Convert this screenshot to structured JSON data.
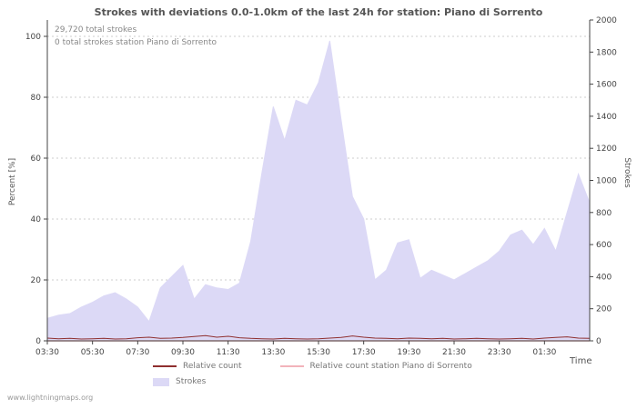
{
  "title": "Strokes with deviations 0.0-1.0km of the last 24h for station: Piano di Sorrento",
  "annotations": {
    "total_strokes": "29,720 total strokes",
    "station_total": "0 total strokes station Piano di Sorrento"
  },
  "watermark": "www.lightningmaps.org",
  "colors": {
    "area": "#dcd9f6",
    "relative": "#8f2f2f",
    "station": "#f2b3bb",
    "axis": "#444444",
    "grid": "#cccccc"
  },
  "axes": {
    "left_label": "Percent  [%]",
    "right_label": "Strokes",
    "x_label": "Time",
    "left_ticks": [
      0,
      20,
      40,
      60,
      80,
      100
    ],
    "right_ticks": [
      0,
      200,
      400,
      600,
      800,
      1000,
      1200,
      1400,
      1600,
      1800,
      2000
    ],
    "x_ticks": [
      "03:30",
      "05:30",
      "07:30",
      "09:30",
      "11:30",
      "13:30",
      "15:30",
      "17:30",
      "19:30",
      "21:30",
      "23:30",
      "01:30"
    ]
  },
  "legend": [
    {
      "label": "Relative count",
      "color": "#8f2f2f",
      "type": "line"
    },
    {
      "label": "Relative count station Piano di Sorrento",
      "color": "#f2b3bb",
      "type": "line"
    },
    {
      "label": "Strokes",
      "color": "#dcd9f6",
      "type": "area"
    }
  ],
  "chart_data": {
    "type": "area",
    "title": "Strokes with deviations 0.0-1.0km of the last 24h for station: Piano di Sorrento",
    "xlabel": "Time",
    "ylabel_left": "Percent [%]",
    "ylabel_right": "Strokes",
    "ylim_left": [
      0,
      100
    ],
    "ylim_right": [
      0,
      2000
    ],
    "grid": "dashed-horizontal",
    "legend_position": "bottom",
    "x": [
      "03:30",
      "04:00",
      "04:30",
      "05:00",
      "05:30",
      "06:00",
      "06:30",
      "07:00",
      "07:30",
      "08:00",
      "08:30",
      "09:00",
      "09:30",
      "10:00",
      "10:30",
      "11:00",
      "11:30",
      "12:00",
      "12:30",
      "13:00",
      "13:30",
      "14:00",
      "14:30",
      "15:00",
      "15:30",
      "16:00",
      "16:30",
      "17:00",
      "17:30",
      "18:00",
      "18:30",
      "19:00",
      "19:30",
      "20:00",
      "20:30",
      "21:00",
      "21:30",
      "22:00",
      "22:30",
      "23:00",
      "23:30",
      "00:00",
      "00:30",
      "01:00",
      "01:30",
      "02:00",
      "02:30",
      "03:00",
      "03:30"
    ],
    "series": [
      {
        "name": "Strokes",
        "axis": "right",
        "style": "filled-area",
        "values": [
          140,
          160,
          170,
          210,
          240,
          280,
          300,
          260,
          210,
          120,
          330,
          400,
          470,
          260,
          350,
          330,
          320,
          360,
          620,
          1050,
          1460,
          1250,
          1500,
          1470,
          1610,
          1870,
          1380,
          900,
          760,
          380,
          440,
          610,
          630,
          390,
          440,
          410,
          380,
          420,
          460,
          500,
          560,
          660,
          690,
          600,
          700,
          560,
          800,
          1040,
          860
        ]
      },
      {
        "name": "Relative count",
        "axis": "left",
        "style": "line",
        "values": [
          0.9,
          0.7,
          0.8,
          0.6,
          0.7,
          0.8,
          0.6,
          0.7,
          1.0,
          1.2,
          0.8,
          0.9,
          1.1,
          1.4,
          1.7,
          1.2,
          1.5,
          1.0,
          0.8,
          0.7,
          0.6,
          0.8,
          0.7,
          0.6,
          0.7,
          0.9,
          1.1,
          1.6,
          1.2,
          0.9,
          0.8,
          0.7,
          0.9,
          0.8,
          0.7,
          0.8,
          0.6,
          0.7,
          0.8,
          0.7,
          0.6,
          0.7,
          0.8,
          0.6,
          0.9,
          1.1,
          1.3,
          0.9,
          0.8
        ]
      },
      {
        "name": "Relative count station Piano di Sorrento",
        "axis": "left",
        "style": "line",
        "values": [
          0,
          0,
          0,
          0,
          0,
          0,
          0,
          0,
          0,
          0,
          0,
          0,
          0,
          0,
          0,
          0,
          0,
          0,
          0,
          0,
          0,
          0,
          0,
          0,
          0,
          0,
          0,
          0,
          0,
          0,
          0,
          0,
          0,
          0,
          0,
          0,
          0,
          0,
          0,
          0,
          0,
          0,
          0,
          0,
          0,
          0,
          0,
          0,
          0
        ]
      }
    ]
  }
}
